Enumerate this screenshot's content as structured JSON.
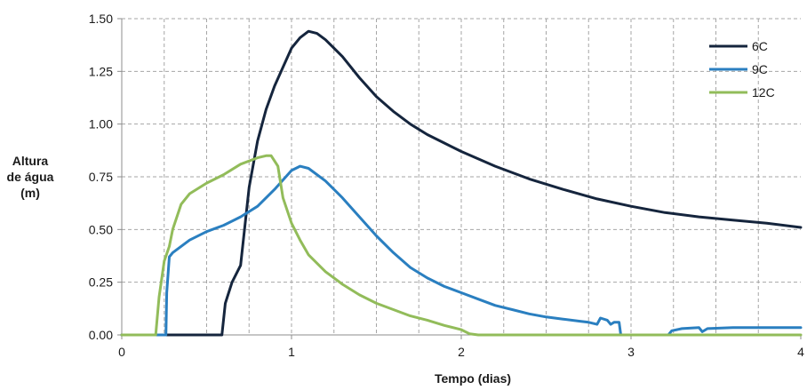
{
  "chart_data": {
    "type": "line",
    "xlabel": "Tempo (dias)",
    "ylabel_lines": [
      "Altura",
      "de água",
      "(m)"
    ],
    "xlim": [
      0,
      4
    ],
    "ylim": [
      0,
      1.5
    ],
    "x_ticks": [
      "0",
      "1",
      "2",
      "3",
      "4"
    ],
    "y_ticks": [
      "0.00",
      "0.25",
      "0.50",
      "0.75",
      "1.00",
      "1.25",
      "1.50"
    ],
    "grid": true,
    "legend_position": "top-right",
    "series": [
      {
        "name": "6C",
        "color": "#15253d",
        "points": [
          [
            0,
            0
          ],
          [
            0.59,
            0
          ],
          [
            0.61,
            0.15
          ],
          [
            0.65,
            0.25
          ],
          [
            0.7,
            0.33
          ],
          [
            0.75,
            0.7
          ],
          [
            0.8,
            0.92
          ],
          [
            0.85,
            1.07
          ],
          [
            0.9,
            1.18
          ],
          [
            0.95,
            1.27
          ],
          [
            1.0,
            1.36
          ],
          [
            1.05,
            1.41
          ],
          [
            1.1,
            1.44
          ],
          [
            1.15,
            1.43
          ],
          [
            1.2,
            1.4
          ],
          [
            1.3,
            1.32
          ],
          [
            1.4,
            1.22
          ],
          [
            1.5,
            1.13
          ],
          [
            1.6,
            1.06
          ],
          [
            1.7,
            1.0
          ],
          [
            1.8,
            0.95
          ],
          [
            1.9,
            0.91
          ],
          [
            2.0,
            0.87
          ],
          [
            2.2,
            0.8
          ],
          [
            2.4,
            0.74
          ],
          [
            2.6,
            0.69
          ],
          [
            2.8,
            0.645
          ],
          [
            3.0,
            0.61
          ],
          [
            3.2,
            0.58
          ],
          [
            3.4,
            0.56
          ],
          [
            3.6,
            0.545
          ],
          [
            3.8,
            0.53
          ],
          [
            4.0,
            0.51
          ]
        ]
      },
      {
        "name": "9C",
        "color": "#2a7fc0",
        "points": [
          [
            0,
            0
          ],
          [
            0.26,
            0
          ],
          [
            0.265,
            0.2
          ],
          [
            0.28,
            0.37
          ],
          [
            0.3,
            0.39
          ],
          [
            0.4,
            0.45
          ],
          [
            0.5,
            0.49
          ],
          [
            0.6,
            0.52
          ],
          [
            0.7,
            0.56
          ],
          [
            0.8,
            0.61
          ],
          [
            0.9,
            0.69
          ],
          [
            1.0,
            0.78
          ],
          [
            1.05,
            0.8
          ],
          [
            1.1,
            0.79
          ],
          [
            1.2,
            0.73
          ],
          [
            1.3,
            0.65
          ],
          [
            1.4,
            0.56
          ],
          [
            1.5,
            0.47
          ],
          [
            1.6,
            0.39
          ],
          [
            1.7,
            0.32
          ],
          [
            1.8,
            0.27
          ],
          [
            1.9,
            0.23
          ],
          [
            2.0,
            0.2
          ],
          [
            2.1,
            0.17
          ],
          [
            2.2,
            0.14
          ],
          [
            2.3,
            0.12
          ],
          [
            2.4,
            0.1
          ],
          [
            2.5,
            0.085
          ],
          [
            2.6,
            0.075
          ],
          [
            2.7,
            0.065
          ],
          [
            2.75,
            0.06
          ],
          [
            2.8,
            0.05
          ],
          [
            2.82,
            0.08
          ],
          [
            2.86,
            0.07
          ],
          [
            2.88,
            0.05
          ],
          [
            2.9,
            0.06
          ],
          [
            2.93,
            0.06
          ],
          [
            2.94,
            0
          ],
          [
            3.22,
            0
          ],
          [
            3.24,
            0.02
          ],
          [
            3.3,
            0.03
          ],
          [
            3.4,
            0.035
          ],
          [
            3.42,
            0.015
          ],
          [
            3.45,
            0.03
          ],
          [
            3.6,
            0.035
          ],
          [
            4.0,
            0.035
          ]
        ]
      },
      {
        "name": "12C",
        "color": "#92bc5a",
        "points": [
          [
            0,
            0
          ],
          [
            0.2,
            0
          ],
          [
            0.22,
            0.18
          ],
          [
            0.25,
            0.35
          ],
          [
            0.28,
            0.42
          ],
          [
            0.3,
            0.5
          ],
          [
            0.35,
            0.62
          ],
          [
            0.4,
            0.67
          ],
          [
            0.5,
            0.72
          ],
          [
            0.6,
            0.76
          ],
          [
            0.7,
            0.81
          ],
          [
            0.8,
            0.84
          ],
          [
            0.85,
            0.85
          ],
          [
            0.88,
            0.85
          ],
          [
            0.92,
            0.8
          ],
          [
            0.95,
            0.65
          ],
          [
            1.0,
            0.53
          ],
          [
            1.05,
            0.45
          ],
          [
            1.1,
            0.38
          ],
          [
            1.2,
            0.3
          ],
          [
            1.3,
            0.24
          ],
          [
            1.4,
            0.19
          ],
          [
            1.5,
            0.15
          ],
          [
            1.6,
            0.12
          ],
          [
            1.7,
            0.09
          ],
          [
            1.8,
            0.07
          ],
          [
            1.9,
            0.045
          ],
          [
            2.0,
            0.025
          ],
          [
            2.05,
            0.005
          ],
          [
            2.1,
            0
          ],
          [
            4.0,
            0
          ]
        ]
      }
    ]
  }
}
